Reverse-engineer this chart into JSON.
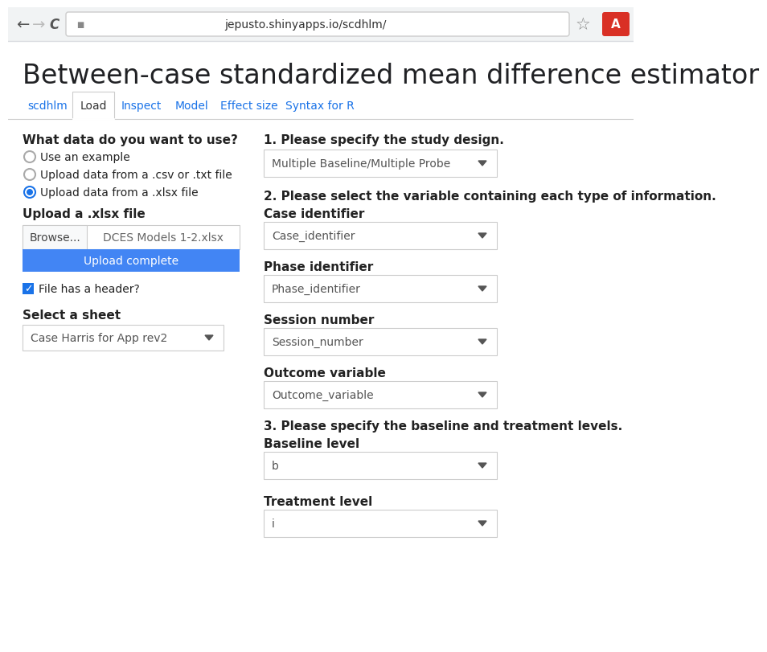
{
  "bg_color": "#ffffff",
  "browser_bar_color": "#f1f3f4",
  "browser_border_color": "#dadce0",
  "url": "jepusto.shinyapps.io/scdhlm/",
  "title": "Between-case standardized mean difference estimator",
  "title_color": "#202124",
  "title_fontsize": 24,
  "tab_names": [
    "scdhlm",
    "Load",
    "Inspect",
    "Model",
    "Effect size",
    "Syntax for R"
  ],
  "active_tab": "Load",
  "tab_text_color": "#1a73e8",
  "active_tab_text_color": "#333333",
  "tab_border_color": "#cccccc",
  "separator_color": "#cccccc",
  "radio_color": "#1a73e8",
  "checkbox_color": "#1a73e8",
  "upload_btn_color": "#4285f4",
  "browse_bg": "#f8f9fa",
  "left_section": {
    "question": "What data do you want to use?",
    "radio_options": [
      "Use an example",
      "Upload data from a .csv or .txt file",
      "Upload data from a .xlsx file"
    ],
    "selected_radio": 2,
    "upload_label": "Upload a .xlsx file",
    "browse_text": "Browse...",
    "file_text": "DCES Models 1-2.xlsx",
    "upload_btn_text": "Upload complete",
    "checkbox_label": "File has a header?",
    "sheet_label": "Select a sheet",
    "sheet_value": "Case Harris for App rev2"
  },
  "right_section": {
    "q1_text": "1. Please specify the study design.",
    "study_design_value": "Multiple Baseline/Multiple Probe",
    "q2_text": "2. Please select the variable containing each type of information.",
    "fields": [
      {
        "label": "Case identifier",
        "value": "Case_identifier"
      },
      {
        "label": "Phase identifier",
        "value": "Phase_identifier"
      },
      {
        "label": "Session number",
        "value": "Session_number"
      },
      {
        "label": "Outcome variable",
        "value": "Outcome_variable"
      }
    ],
    "q3_text": "3. Please specify the baseline and treatment levels.",
    "level_fields": [
      {
        "label": "Baseline level",
        "value": "b"
      },
      {
        "label": "Treatment level",
        "value": "i"
      }
    ]
  }
}
